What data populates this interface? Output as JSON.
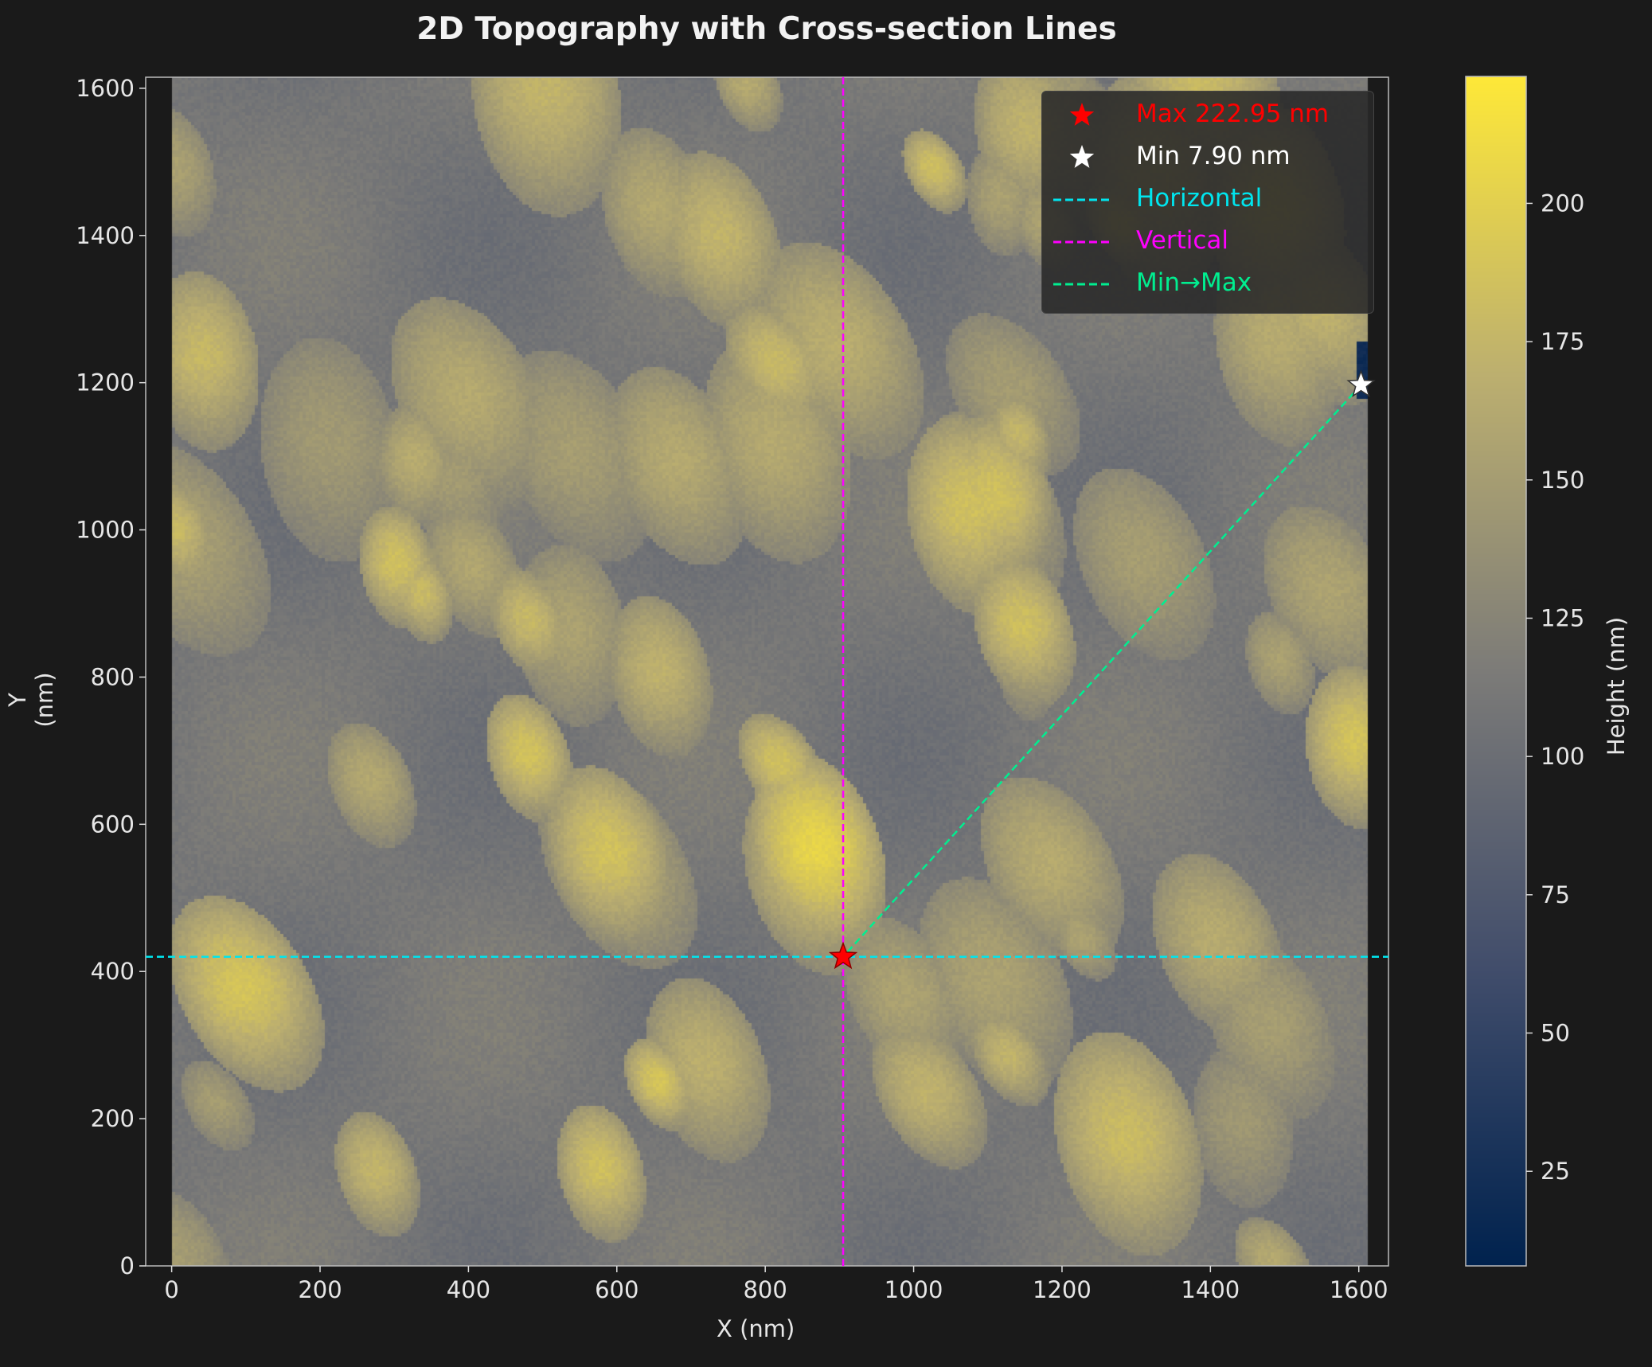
{
  "chart_data": {
    "type": "heatmap",
    "title": "2D Topography with Cross-section Lines",
    "xlabel": "X (nm)",
    "ylabel": "Y (nm)",
    "colorbar_label": "Height (nm)",
    "colormap": "cividis",
    "xlim": [
      -35,
      1640
    ],
    "ylim": [
      0,
      1615
    ],
    "image_extent_nm": [
      0,
      1612,
      0,
      1615
    ],
    "color_range": [
      7.9,
      222.95
    ],
    "x_ticks": [
      "0",
      "200",
      "400",
      "600",
      "800",
      "1000",
      "1200",
      "1400",
      "1600"
    ],
    "y_ticks": [
      "0",
      "200",
      "400",
      "600",
      "800",
      "1000",
      "1200",
      "1400",
      "1600"
    ],
    "colorbar_ticks": [
      "25",
      "50",
      "75",
      "100",
      "125",
      "150",
      "175",
      "200"
    ],
    "max_point": {
      "x": 905,
      "y": 420,
      "value": 222.95,
      "label": "Max 222.95 nm",
      "color": "#ff0000"
    },
    "min_point": {
      "x": 1603,
      "y": 1197,
      "value": 7.9,
      "label": "Min 7.90 nm",
      "color": "#ffffff"
    },
    "horizontal_line": {
      "y": 420,
      "label": "Horizontal",
      "color": "#00e5ee"
    },
    "vertical_line": {
      "x": 905,
      "label": "Vertical",
      "color": "#ff00ff"
    },
    "min_max_line": {
      "from": [
        1603,
        1197
      ],
      "to": [
        905,
        420
      ],
      "label": "Min→Max",
      "color": "#00ee90"
    },
    "legend_position": "top-right",
    "grid": false
  }
}
